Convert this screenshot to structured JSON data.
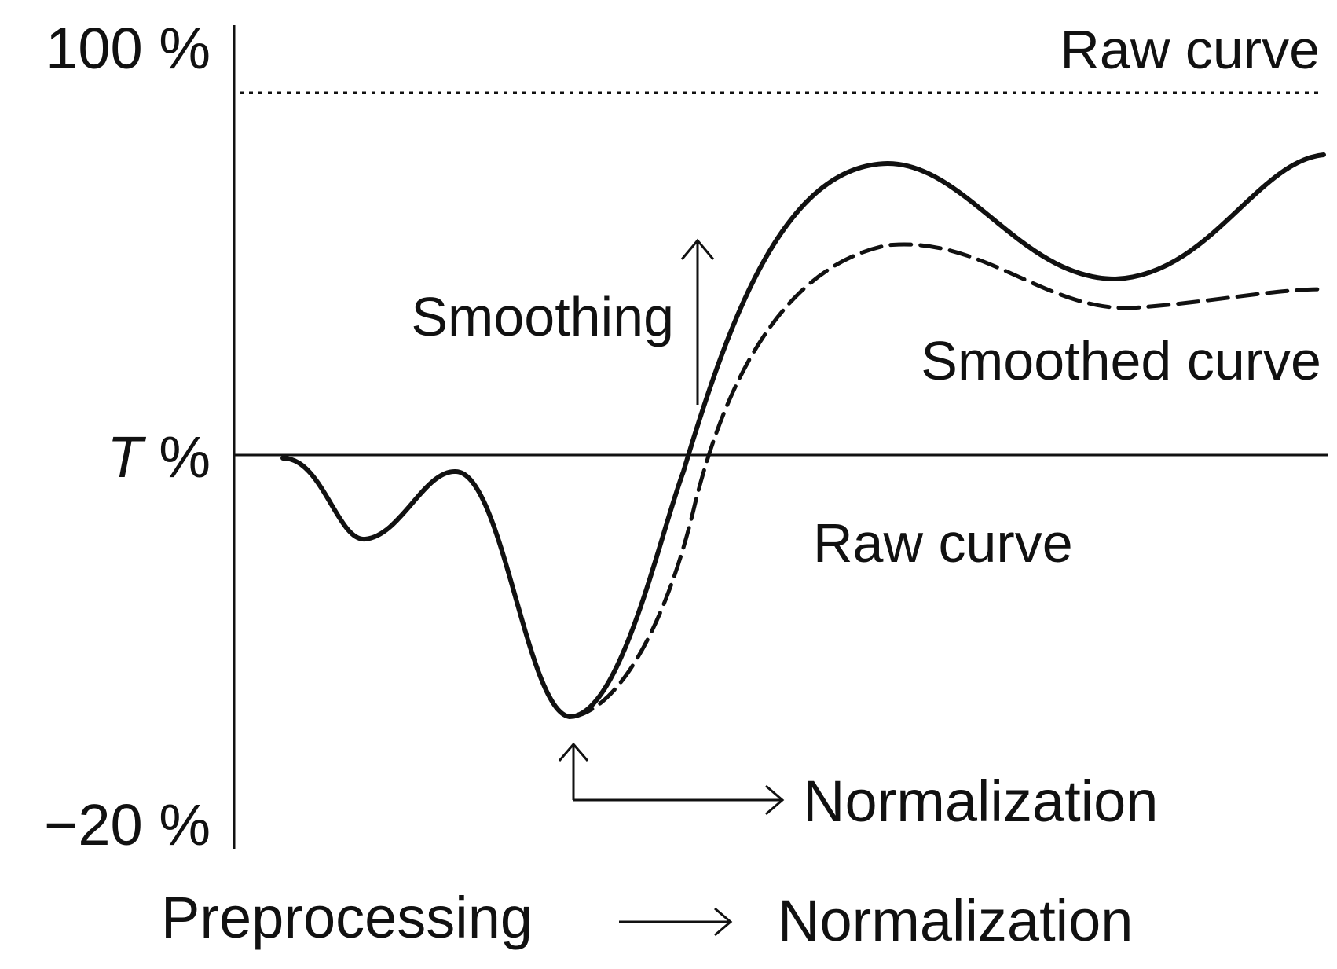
{
  "axis": {
    "top_label": "100 %",
    "mid_label_symbol": "T",
    "mid_label_unit": " %",
    "bottom_label": "−20 %"
  },
  "labels": {
    "raw_curve_top": "Raw curve",
    "smoothing": "Smoothing",
    "smoothed_curve": "Smoothed curve",
    "raw_curve_middle": "Raw curve",
    "normalization_arrow": "Normalization"
  },
  "footer": {
    "preprocessing": "Preprocessing",
    "normalization": "Normalization"
  },
  "styles": {
    "ink": "#111111",
    "background": "#ffffff"
  }
}
